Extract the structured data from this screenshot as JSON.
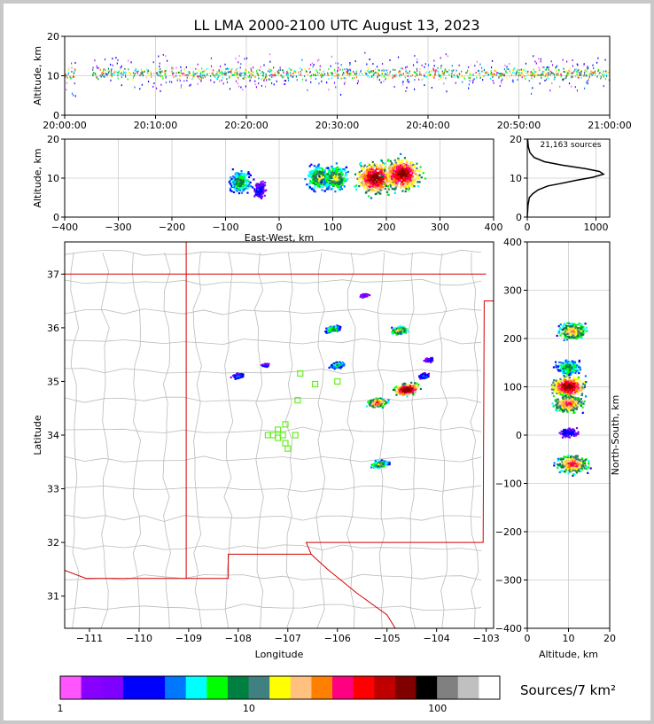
{
  "title": "LL LMA 2000-2100 UTC August 13, 2023",
  "colors": {
    "frame": "#000000",
    "grid": "#cccccc",
    "state_border": "#d40000",
    "county": "#bbbbbb",
    "station": "#66ee22",
    "profile": "#000000"
  },
  "chart_data": [
    {
      "id": "time-height",
      "type": "heatmap",
      "ylabel": "Altitude, km",
      "xlim": [
        "20:00:00",
        "21:00:00"
      ],
      "ylim": [
        0,
        20
      ],
      "xticks": [
        "20:00:00",
        "20:10:00",
        "20:20:00",
        "20:30:00",
        "20:40:00",
        "20:50:00",
        "21:00:00"
      ],
      "yticks": [
        0,
        10,
        20
      ],
      "density": {
        "core_altitude_km": [
          8,
          13
        ],
        "spread_altitude_km": [
          3,
          20
        ],
        "note_color": "sources per 7 km2"
      }
    },
    {
      "id": "ew-altitude",
      "type": "heatmap",
      "xlabel": "East-West, km",
      "ylabel": "Altitude, km",
      "xlim": [
        -400,
        400
      ],
      "ylim": [
        0,
        20
      ],
      "xticks": [
        -400,
        -300,
        -200,
        -100,
        0,
        100,
        200,
        300,
        400
      ],
      "yticks": [
        0,
        10,
        20
      ],
      "clusters_km": [
        {
          "x": -72,
          "z": 9,
          "strength": 0.5
        },
        {
          "x": -37,
          "z": 7,
          "strength": 0.2
        },
        {
          "x": 75,
          "z": 10,
          "strength": 0.6
        },
        {
          "x": 105,
          "z": 10,
          "strength": 0.6
        },
        {
          "x": 180,
          "z": 10,
          "strength": 1.0
        },
        {
          "x": 230,
          "z": 11,
          "strength": 1.0
        }
      ]
    },
    {
      "id": "altitude-histogram",
      "type": "line",
      "annotation": "21,163 sources",
      "xlim": [
        0,
        1200
      ],
      "ylim": [
        0,
        20
      ],
      "xticks": [
        0,
        1000
      ],
      "yticks": [
        0,
        10,
        20
      ],
      "points": [
        [
          0,
          0
        ],
        [
          10,
          3
        ],
        [
          30,
          5
        ],
        [
          80,
          6
        ],
        [
          160,
          7
        ],
        [
          300,
          8
        ],
        [
          480,
          8.6
        ],
        [
          700,
          9.4
        ],
        [
          950,
          10.2
        ],
        [
          1110,
          11
        ],
        [
          1050,
          11.7
        ],
        [
          850,
          12.4
        ],
        [
          520,
          13.3
        ],
        [
          250,
          14.2
        ],
        [
          100,
          15.3
        ],
        [
          40,
          16.5
        ],
        [
          15,
          18
        ],
        [
          5,
          20
        ]
      ]
    },
    {
      "id": "plan-view",
      "type": "scatter",
      "xlabel": "Longitude",
      "ylabel": "Latitude",
      "xlim": [
        -111.5,
        -102.85
      ],
      "ylim": [
        30.4,
        37.6
      ],
      "xticks": [
        -111,
        -110,
        -109,
        -108,
        -107,
        -106,
        -105,
        -104,
        -103
      ],
      "yticks": [
        31,
        32,
        33,
        34,
        35,
        36,
        37
      ],
      "stations": [
        [
          -107.3,
          34.0
        ],
        [
          -107.2,
          34.1
        ],
        [
          -107.05,
          34.2
        ],
        [
          -107.2,
          33.95
        ],
        [
          -107.05,
          33.85
        ],
        [
          -107.0,
          33.75
        ],
        [
          -106.85,
          34.0
        ],
        [
          -107.1,
          34.0
        ],
        [
          -107.4,
          34.0
        ],
        [
          -106.8,
          34.65
        ],
        [
          -106.75,
          35.15
        ],
        [
          -106.45,
          34.95
        ],
        [
          -106.0,
          35.0
        ]
      ],
      "storms": [
        {
          "lon": -106.1,
          "lat": 35.97,
          "size": 0.9
        },
        {
          "lon": -104.75,
          "lat": 35.95,
          "size": 1.2
        },
        {
          "lon": -106.0,
          "lat": 35.3,
          "size": 0.8
        },
        {
          "lon": -105.2,
          "lat": 34.6,
          "size": 1.5
        },
        {
          "lon": -104.6,
          "lat": 34.85,
          "size": 2.0
        },
        {
          "lon": -105.15,
          "lat": 33.45,
          "size": 1.1
        },
        {
          "lon": -108.0,
          "lat": 35.1,
          "size": 0.5
        },
        {
          "lon": -104.25,
          "lat": 35.1,
          "size": 0.5
        },
        {
          "lon": -107.45,
          "lat": 35.3,
          "size": 0.3
        },
        {
          "lon": -104.15,
          "lat": 35.4,
          "size": 0.3
        },
        {
          "lon": -105.45,
          "lat": 36.6,
          "size": 0.2
        }
      ]
    },
    {
      "id": "altitude-ns",
      "type": "heatmap",
      "xlabel": "Altitude, km",
      "ylabel": "North-South, km",
      "xlim": [
        0,
        20
      ],
      "ylim": [
        -400,
        400
      ],
      "xticks": [
        0,
        10,
        20
      ],
      "yticks": [
        -400,
        -300,
        -200,
        -100,
        0,
        100,
        200,
        300,
        400
      ],
      "clusters_km": [
        {
          "y": 215,
          "z": 11,
          "strength": 0.7
        },
        {
          "y": 140,
          "z": 10,
          "strength": 0.5
        },
        {
          "y": 100,
          "z": 10,
          "strength": 1.0
        },
        {
          "y": 65,
          "z": 10,
          "strength": 0.8
        },
        {
          "y": 5,
          "z": 10,
          "strength": 0.2
        },
        {
          "y": -60,
          "z": 11,
          "strength": 0.8
        }
      ]
    }
  ],
  "colorbar": {
    "label": "Sources/7 km²",
    "ticks": [
      "1",
      "10",
      "100"
    ],
    "colors": [
      "#ff55ff",
      "#8800ff",
      "#8000ff",
      "#0000ff",
      "#0000ff",
      "#0077ff",
      "#00ffff",
      "#00ff00",
      "#008040",
      "#408080",
      "#ffff00",
      "#ffc080",
      "#ff8000",
      "#ff0080",
      "#ff0000",
      "#c00000",
      "#800000",
      "#000000",
      "#808080",
      "#c0c0c0",
      "#ffffff"
    ]
  }
}
